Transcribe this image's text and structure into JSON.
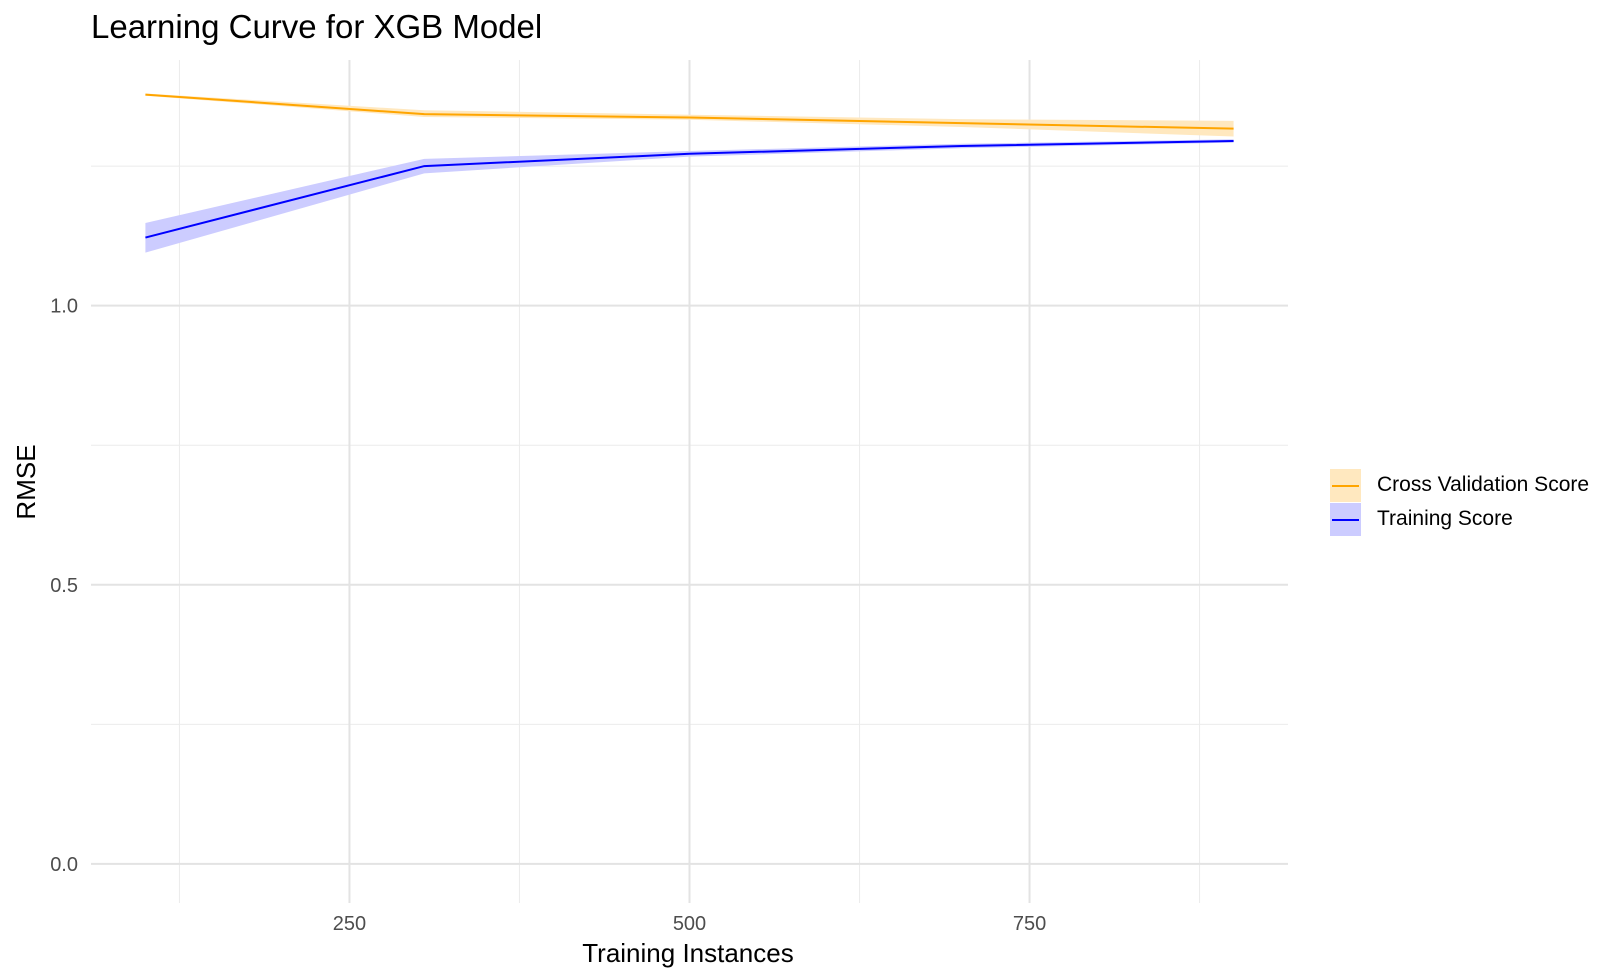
{
  "chart_data": {
    "type": "line",
    "title": "Learning Curve for XGB Model",
    "xlabel": "Training Instances",
    "ylabel": "RMSE",
    "xlim": [
      60,
      940
    ],
    "ylim": [
      -0.07,
      1.44
    ],
    "x_ticks": [
      250,
      500,
      750
    ],
    "x_tick_labels": [
      "250",
      "500",
      "750"
    ],
    "x_minor_grid": [
      125,
      375,
      625,
      875
    ],
    "y_ticks": [
      0.0,
      0.5,
      1.0
    ],
    "y_tick_labels": [
      "0.0",
      "0.5",
      "1.0"
    ],
    "y_minor_grid": [
      0.25,
      0.75,
      1.25
    ],
    "grid": true,
    "legend_position": "right",
    "series": [
      {
        "name": "Cross Validation Score",
        "color": "#FFA500",
        "band_color": "#FFE8BF",
        "x": [
          100,
          305,
          500,
          700,
          900
        ],
        "values": [
          1.378,
          1.343,
          1.337,
          1.327,
          1.317
        ],
        "lower": [
          1.376,
          1.338,
          1.333,
          1.32,
          1.303
        ],
        "upper": [
          1.38,
          1.35,
          1.342,
          1.334,
          1.331
        ]
      },
      {
        "name": "Training Score",
        "color": "#0000FF",
        "band_color": "#CCCCFF",
        "x": [
          100,
          305,
          500,
          700,
          900
        ],
        "values": [
          1.122,
          1.25,
          1.272,
          1.286,
          1.295
        ],
        "lower": [
          1.095,
          1.237,
          1.267,
          1.282,
          1.292
        ],
        "upper": [
          1.148,
          1.263,
          1.277,
          1.29,
          1.298
        ]
      }
    ]
  }
}
